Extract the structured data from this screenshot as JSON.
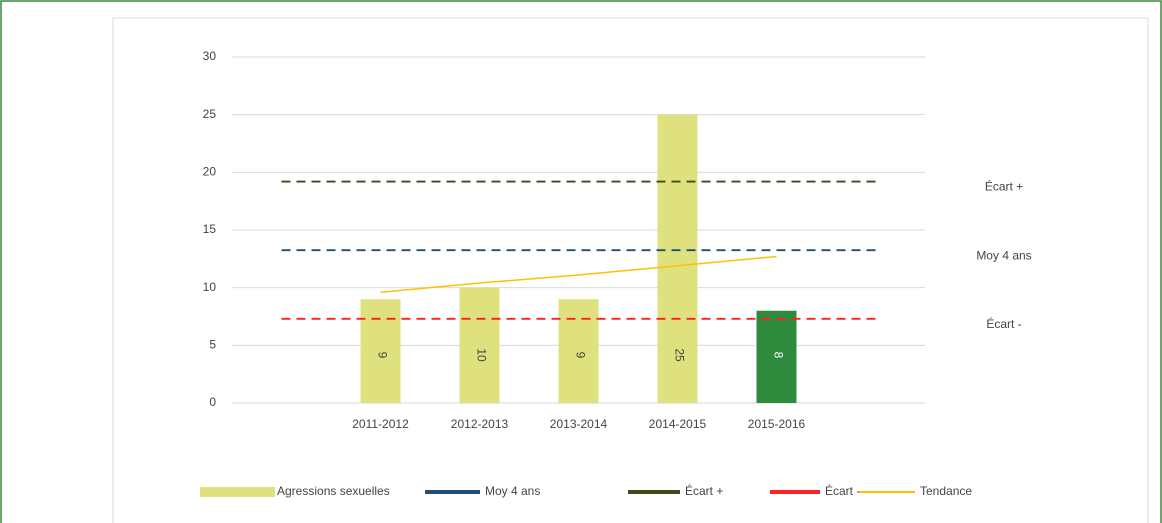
{
  "chart_data": {
    "type": "bar",
    "categories": [
      null,
      "2011-2012",
      "2012-2013",
      "2013-2014",
      "2014-2015",
      "2015-2016",
      null
    ],
    "ylim": [
      0,
      30
    ],
    "yticks": [
      0,
      5,
      10,
      15,
      20,
      25,
      30
    ],
    "grid": true,
    "series": [
      {
        "name": "Agressions sexuelles",
        "type": "bar",
        "color": "#dfe07e",
        "colors": [
          null,
          "#dfe07e",
          "#dfe07e",
          "#dfe07e",
          "#dfe07e",
          "#2e8b3e",
          null
        ],
        "values": [
          null,
          9,
          10,
          9,
          25,
          8,
          null
        ]
      },
      {
        "name": "Moy 4 ans",
        "type": "line",
        "dashed": true,
        "color": "#1f4e79",
        "values": [
          13.25,
          13.25,
          13.25,
          13.25,
          13.25,
          13.25,
          13.25
        ]
      },
      {
        "name": "Écart +",
        "type": "line",
        "dashed": true,
        "color": "#3d4a1a",
        "values": [
          19.2,
          19.2,
          19.2,
          19.2,
          19.2,
          19.2,
          19.2
        ]
      },
      {
        "name": "Écart -",
        "type": "line",
        "dashed": true,
        "color": "#ff2020",
        "values": [
          7.3,
          7.3,
          7.3,
          7.3,
          7.3,
          7.3,
          7.3
        ]
      },
      {
        "name": "Tendance",
        "type": "line",
        "dashed": false,
        "color": "#ffc000",
        "values": [
          null,
          9.6,
          10.4,
          11.1,
          11.9,
          12.7,
          null
        ]
      }
    ],
    "annotations": [
      {
        "series": 2,
        "value": 19.2
      },
      {
        "series": 1,
        "value": 13.25
      },
      {
        "series": 3,
        "value": 7.3
      }
    ]
  }
}
